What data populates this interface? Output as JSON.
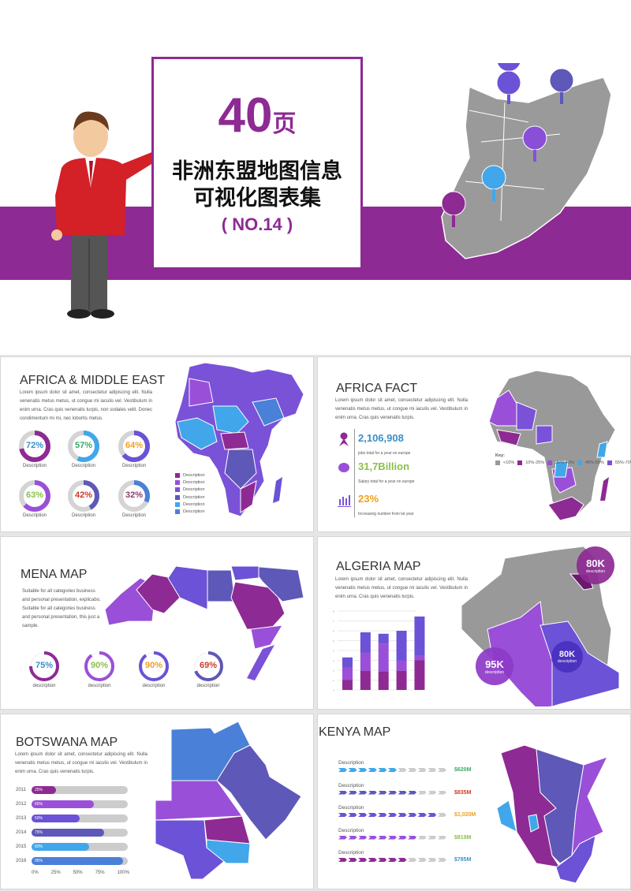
{
  "cover": {
    "count": "40",
    "count_unit": "页",
    "title_line1": "非洲东盟地图信息",
    "title_line2": "可视化图表集",
    "subtitle": "( NO.14 )",
    "accent": "#8e2a94",
    "map_pins": [
      "shopping-basket-icon",
      "drink-icon",
      "coffee-icon",
      "ice-cream-icon",
      "shop-icon"
    ]
  },
  "africa_me": {
    "title": "AFRICA & MIDDLE EAST",
    "body": "Lorem ipsum dolor sit amet, consectetur adipiscing elit. Nulla venenatis metus metus, ut congue mi iaculis vel. Vestibulum in enim urna. Cras quis venenatis turpis, non sodales velit. Donec condimentum mi mi, nec lobortis metus.",
    "donuts": [
      {
        "value": 72,
        "label": "72%",
        "desc": "Description",
        "ring": "#8e2a94",
        "text": "#3a8fc8"
      },
      {
        "value": 57,
        "label": "57%",
        "desc": "Description",
        "ring": "#41a7ea",
        "text": "#3aaa6a"
      },
      {
        "value": 64,
        "label": "64%",
        "desc": "Description",
        "ring": "#6b52d6",
        "text": "#f0a020"
      },
      {
        "value": 63,
        "label": "63%",
        "desc": "Description",
        "ring": "#9a4fd8",
        "text": "#8cbf4a"
      },
      {
        "value": 42,
        "label": "42%",
        "desc": "Description",
        "ring": "#5e58b8",
        "text": "#d03a2a"
      },
      {
        "value": 32,
        "label": "32%",
        "desc": "Description",
        "ring": "#4a80d8",
        "text": "#8e3a6a"
      }
    ],
    "legend": [
      {
        "label": "Description",
        "color": "#8e2a94"
      },
      {
        "label": "Description",
        "color": "#9a4fd8"
      },
      {
        "label": "Description",
        "color": "#7a52d8"
      },
      {
        "label": "Description",
        "color": "#5e58b8"
      },
      {
        "label": "Description",
        "color": "#41a7ea"
      },
      {
        "label": "Description",
        "color": "#4a80d8"
      }
    ]
  },
  "africa_fact": {
    "title": "AFRICA FACT",
    "body": "Lorem ipsum dolor sit amet, consectetur adipiscing elit. Nulla venenatis metus metus, ut congue mi iaculis vel. Vestibulum in enim urna. Cras quis venenatis turpis.",
    "stats": [
      {
        "icon": "person-icon",
        "value": "2,106,908",
        "caption": "jobs total for a year on europe",
        "color": "#3a8fc8"
      },
      {
        "icon": "piggy-bank-icon",
        "value": "31,7Billion",
        "caption": "Salary total for a year on europe",
        "color": "#8cbf4a"
      },
      {
        "icon": "bar-chart-icon",
        "value": "23%",
        "caption": "Increasing number from lat year",
        "color": "#f0a020"
      }
    ],
    "key_title": "Key:",
    "key": [
      {
        "label": "<10%",
        "color": "#999999"
      },
      {
        "label": "10%-25%",
        "color": "#8e2a94"
      },
      {
        "label": "25%-40%",
        "color": "#9a4fd8"
      },
      {
        "label": "40%-55%",
        "color": "#41a7ea"
      },
      {
        "label": "55%-70%",
        "color": "#7a52d8"
      },
      {
        "label": ">70%",
        "color": "#5e58b8"
      }
    ]
  },
  "mena": {
    "title": "MENA MAP",
    "body": "Suitable for all categories business and personal presentation, explicabo. Suitable for all categories business and personal presentation, this just a sample.",
    "donuts": [
      {
        "value": 75,
        "label": "75%",
        "desc": "description",
        "ring": "#8e2a94",
        "text": "#3a8fc8"
      },
      {
        "value": 90,
        "label": "90%",
        "desc": "description",
        "ring": "#9a4fd8",
        "text": "#8cbf4a"
      },
      {
        "value": 90,
        "label": "90%",
        "desc": "description",
        "ring": "#6b52d6",
        "text": "#f0a020"
      },
      {
        "value": 69,
        "label": "69%",
        "desc": "description",
        "ring": "#5e58b8",
        "text": "#d03a2a"
      }
    ]
  },
  "algeria": {
    "title": "ALGERIA MAP",
    "body": "Lorem ipsum dolor sit amet, consectetur adipiscing elit. Nulla venenatis metus metus, ut congue mi iaculis vel. Vestibulum in enim urna. Cras quis venenatis turpis.",
    "bubbles": [
      {
        "value": "80K",
        "desc": "description",
        "color": "#8e2a94"
      },
      {
        "value": "80K",
        "desc": "description",
        "color": "#4a30c0"
      },
      {
        "value": "95K",
        "desc": "description",
        "color": "#8e3ac8"
      }
    ]
  },
  "chart_data": {
    "type": "bar",
    "stacked": true,
    "ylim": [
      0,
      8
    ],
    "grid": true,
    "categories": [
      "",
      "",
      "",
      "",
      ""
    ],
    "series": [
      {
        "color": "#8e2a94",
        "values": [
          1,
          1.95,
          1.9,
          1.95,
          3
        ]
      },
      {
        "color": "#9a4fd8",
        "values": [
          1.25,
          1.85,
          2.8,
          1.05,
          0.45
        ]
      },
      {
        "color": "#6b52d6",
        "values": [
          1.05,
          2.05,
          1,
          3,
          4
        ]
      }
    ]
  },
  "botswana": {
    "title": "BOTSWANA MAP",
    "body": "Lorem ipsum dolor sit amet, consectetur adipiscing elit. Nulla venenatis metus metus, ut congue mi iaculis vel. Vestibulum in enim urna. Cras quis venenatis turpis.",
    "bars": [
      {
        "year": "2011",
        "value": 25,
        "label": "25%",
        "color": "#8e2a94"
      },
      {
        "year": "2012",
        "value": 65,
        "label": "65%",
        "color": "#9a4fd8"
      },
      {
        "year": "2013",
        "value": 50,
        "label": "50%",
        "color": "#6b52d6"
      },
      {
        "year": "2014",
        "value": 75,
        "label": "75%",
        "color": "#5e58b8"
      },
      {
        "year": "2015",
        "value": 60,
        "label": "60%",
        "color": "#41a7ea"
      },
      {
        "year": "2016",
        "value": 95,
        "label": "95%",
        "color": "#4a80d8"
      }
    ],
    "axis": [
      "0%",
      "25%",
      "50%",
      "75%",
      "100%"
    ]
  },
  "kenya": {
    "title": "KENYA MAP",
    "rows": [
      {
        "desc": "Description",
        "filled": 6,
        "total": 11,
        "value": "$620M",
        "color": "#41a7ea",
        "value_color": "#3aaa6a"
      },
      {
        "desc": "Description",
        "filled": 8,
        "total": 11,
        "value": "$835M",
        "color": "#5e58b8",
        "value_color": "#d03a2a"
      },
      {
        "desc": "Description",
        "filled": 10,
        "total": 11,
        "value": "$1,020M",
        "color": "#6b52d6",
        "value_color": "#f0a020"
      },
      {
        "desc": "Description",
        "filled": 8,
        "total": 11,
        "value": "$819M",
        "color": "#9a4fd8",
        "value_color": "#8cbf4a"
      },
      {
        "desc": "Description",
        "filled": 7,
        "total": 11,
        "value": "$785M",
        "color": "#8e2a94",
        "value_color": "#3a8fc8"
      }
    ]
  }
}
